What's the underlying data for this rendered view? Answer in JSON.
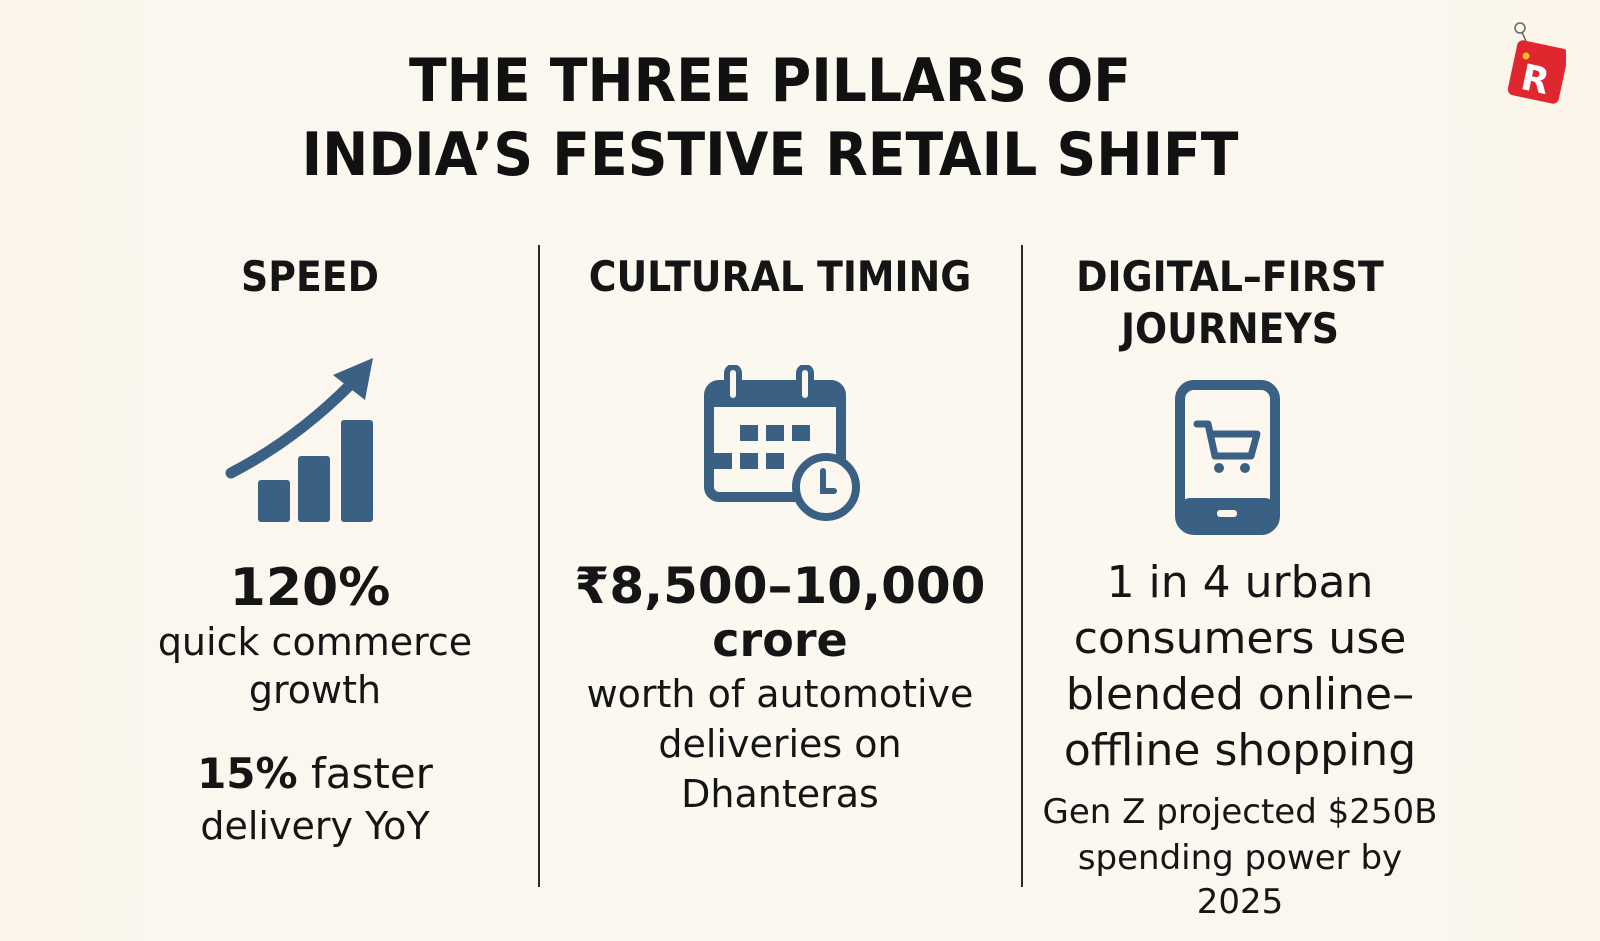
{
  "title": {
    "line1": "THE THREE PILLARS OF",
    "line2": "INDIA’S FESTIVE RETAIL SHIFT"
  },
  "columns": [
    {
      "heading": "SPEED",
      "icon": "growth-chart-icon",
      "stat_value": "120%",
      "stat_label_line1": "quick commerce",
      "stat_label_line2": "growth",
      "sub_value": "15%",
      "sub_label_a": "faster",
      "sub_label_b": "delivery YoY"
    },
    {
      "heading": "CULTURAL TIMING",
      "icon": "calendar-clock-icon",
      "stat_value_line1": "₹8,500–10,000",
      "stat_value_line2": "crore",
      "stat_label_line1": "worth of automotive",
      "stat_label_line2": "deliveries on",
      "stat_label_line3": "Dhanteras"
    },
    {
      "heading_line1": "DIGITAL–FIRST",
      "heading_line2": "JOURNEYS",
      "icon": "mobile-cart-icon",
      "stat_line1": "1 in 4 urban",
      "stat_line2": "consumers use",
      "stat_line3": "blended online–",
      "stat_line4": "offline shopping",
      "note_line1": "Gen Z projected $250B",
      "note_line2": "spending power by 2025"
    }
  ],
  "logo": {
    "icon": "r-tag-logo-icon",
    "letter": "R"
  },
  "colors": {
    "background": "#fbf6ec",
    "icon_blue": "#3a6183",
    "text": "#151515",
    "logo_red": "#e0262e"
  }
}
